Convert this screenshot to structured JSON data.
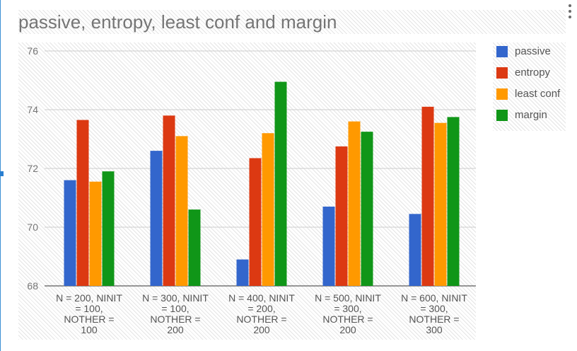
{
  "chart_data": {
    "type": "bar",
    "title": "passive, entropy, least conf and margin",
    "categories": [
      [
        "N = 200, NINIT",
        "= 100,",
        "NOTHER =",
        "100"
      ],
      [
        "N = 300, NINIT",
        "= 100,",
        "NOTHER =",
        "200"
      ],
      [
        "N = 400, NINIT",
        "= 200,",
        "NOTHER =",
        "200"
      ],
      [
        "N = 500, NINIT",
        "= 300,",
        "NOTHER =",
        "200"
      ],
      [
        "N = 600, NINIT",
        "= 300,",
        "NOTHER =",
        "300"
      ]
    ],
    "series": [
      {
        "name": "passive",
        "color": "#3366cc",
        "values": [
          71.6,
          72.6,
          68.9,
          70.7,
          70.45
        ]
      },
      {
        "name": "entropy",
        "color": "#dc3912",
        "values": [
          73.65,
          73.8,
          72.35,
          72.75,
          74.1
        ]
      },
      {
        "name": "least conf",
        "color": "#ff9900",
        "values": [
          71.55,
          73.1,
          73.2,
          73.6,
          73.55
        ]
      },
      {
        "name": "margin",
        "color": "#109618",
        "values": [
          71.9,
          70.6,
          74.95,
          73.25,
          73.75
        ]
      }
    ],
    "ylim": [
      68,
      76
    ],
    "yticks": [
      68,
      70,
      72,
      74,
      76
    ],
    "xlabel": "",
    "ylabel": "",
    "grid": true,
    "legend": "right"
  }
}
